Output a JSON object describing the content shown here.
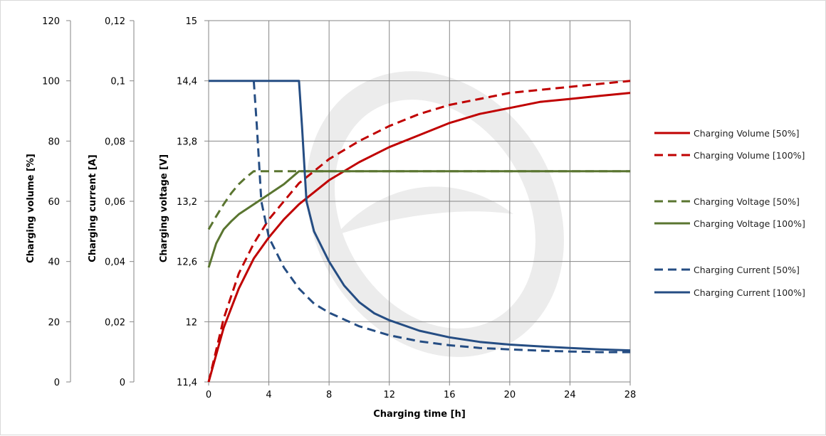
{
  "chart_data": {
    "type": "line",
    "title": "",
    "xlabel": "Charging time [h]",
    "x_ticks": [
      "0",
      "4",
      "8",
      "12",
      "16",
      "20",
      "24",
      "28"
    ],
    "xlim": [
      0,
      28
    ],
    "y_axes": [
      {
        "label": "Charging volume [%]",
        "ticks": [
          "0",
          "20",
          "40",
          "60",
          "80",
          "100",
          "120"
        ],
        "range": [
          0,
          120
        ]
      },
      {
        "label": "Charging current [A]",
        "ticks": [
          "0",
          "0,02",
          "0,04",
          "0,06",
          "0,08",
          "0,1",
          "0,12"
        ],
        "range": [
          0,
          0.12
        ]
      },
      {
        "label": "Charging voltage [V]",
        "ticks": [
          "11,4",
          "12",
          "12,6",
          "13,2",
          "13,8",
          "14,4",
          "15"
        ],
        "range": [
          11.4,
          15
        ]
      }
    ],
    "grid": true,
    "legend_position": "right",
    "series": [
      {
        "name": "Charging Volume [50%]",
        "axis": "volume",
        "color": "#c00000",
        "dash": "solid",
        "points": [
          [
            0,
            0
          ],
          [
            1,
            18
          ],
          [
            2,
            31
          ],
          [
            3,
            41
          ],
          [
            4,
            48
          ],
          [
            5,
            54
          ],
          [
            6,
            59
          ],
          [
            7,
            63
          ],
          [
            8,
            67
          ],
          [
            10,
            73
          ],
          [
            12,
            78
          ],
          [
            14,
            82
          ],
          [
            16,
            86
          ],
          [
            18,
            89
          ],
          [
            20,
            91
          ],
          [
            22,
            93
          ],
          [
            24,
            94
          ],
          [
            26,
            95
          ],
          [
            28,
            96
          ]
        ]
      },
      {
        "name": "Charging Volume [100%]",
        "axis": "volume",
        "color": "#c00000",
        "dash": "dashed",
        "points": [
          [
            0,
            0
          ],
          [
            1,
            21
          ],
          [
            2,
            36
          ],
          [
            3,
            46
          ],
          [
            4,
            54
          ],
          [
            5,
            60
          ],
          [
            6,
            66
          ],
          [
            7,
            70
          ],
          [
            8,
            74
          ],
          [
            10,
            80
          ],
          [
            12,
            85
          ],
          [
            14,
            89
          ],
          [
            16,
            92
          ],
          [
            18,
            94
          ],
          [
            20,
            96
          ],
          [
            22,
            97
          ],
          [
            24,
            98
          ],
          [
            26,
            99
          ],
          [
            28,
            100
          ]
        ]
      },
      {
        "name": "Charging Voltage [50%]",
        "axis": "voltage",
        "color": "#5a7530",
        "dash": "dashed",
        "points": [
          [
            0,
            12.92
          ],
          [
            0.5,
            13.05
          ],
          [
            1,
            13.17
          ],
          [
            1.5,
            13.28
          ],
          [
            2,
            13.37
          ],
          [
            2.5,
            13.44
          ],
          [
            3,
            13.5
          ],
          [
            28,
            13.5
          ]
        ]
      },
      {
        "name": "Charging Voltage [100%]",
        "axis": "voltage",
        "color": "#5a7530",
        "dash": "solid",
        "points": [
          [
            0,
            12.54
          ],
          [
            0.5,
            12.78
          ],
          [
            1,
            12.92
          ],
          [
            1.5,
            13.0
          ],
          [
            2,
            13.07
          ],
          [
            3,
            13.17
          ],
          [
            4,
            13.27
          ],
          [
            5,
            13.37
          ],
          [
            6,
            13.5
          ],
          [
            28,
            13.5
          ]
        ]
      },
      {
        "name": "Charging Current [50%]",
        "axis": "current",
        "color": "#254d83",
        "dash": "dashed",
        "points": [
          [
            3,
            0.1
          ],
          [
            3.2,
            0.085
          ],
          [
            3.5,
            0.06
          ],
          [
            4,
            0.048
          ],
          [
            5,
            0.038
          ],
          [
            6,
            0.031
          ],
          [
            7,
            0.026
          ],
          [
            8,
            0.023
          ],
          [
            10,
            0.0185
          ],
          [
            12,
            0.0155
          ],
          [
            14,
            0.0135
          ],
          [
            16,
            0.0122
          ],
          [
            18,
            0.0113
          ],
          [
            20,
            0.0108
          ],
          [
            22,
            0.0104
          ],
          [
            24,
            0.0101
          ],
          [
            26,
            0.0099
          ],
          [
            28,
            0.0099
          ]
        ]
      },
      {
        "name": "Charging Current [100%]",
        "axis": "current",
        "color": "#254d83",
        "dash": "solid",
        "points": [
          [
            0,
            0.1
          ],
          [
            6,
            0.1
          ],
          [
            6.2,
            0.085
          ],
          [
            6.5,
            0.06
          ],
          [
            7,
            0.05
          ],
          [
            8,
            0.04
          ],
          [
            9,
            0.032
          ],
          [
            10,
            0.0265
          ],
          [
            11,
            0.0228
          ],
          [
            12,
            0.0205
          ],
          [
            14,
            0.017
          ],
          [
            16,
            0.0148
          ],
          [
            18,
            0.0133
          ],
          [
            20,
            0.0124
          ],
          [
            22,
            0.0118
          ],
          [
            24,
            0.0113
          ],
          [
            26,
            0.0108
          ],
          [
            28,
            0.0105
          ]
        ]
      }
    ]
  }
}
